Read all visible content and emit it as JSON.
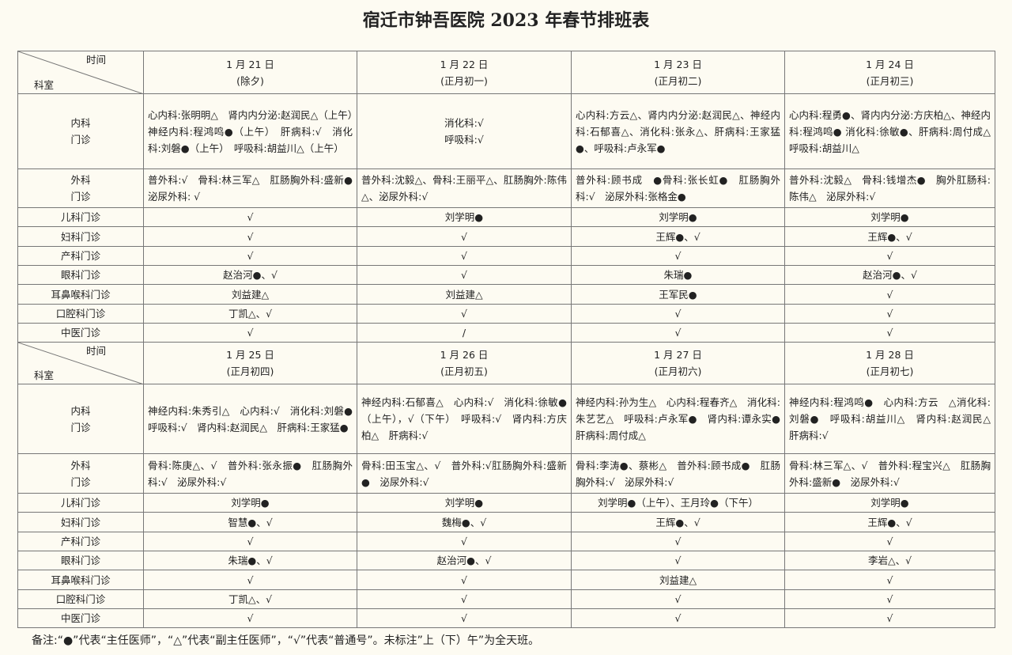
{
  "title": "宿迁市钟吾医院 2023 年春节排班表",
  "blocks": [
    {
      "header": {
        "time": "时间",
        "dept": "科室",
        "days": [
          {
            "date": "1 月 21 日",
            "note": "(除夕)"
          },
          {
            "date": "1 月 22 日",
            "note": "(正月初一)"
          },
          {
            "date": "1 月 23 日",
            "note": "(正月初二)"
          },
          {
            "date": "1 月 24 日",
            "note": "(正月初三)"
          }
        ]
      },
      "rows": [
        {
          "dept": [
            "内科",
            "门诊"
          ],
          "cells": [
            [
              "心内科:张明明△　肾内内分泌:赵润民△（上午）　神经内科:程鸿鸣●（上午）　肝病科:√　消化科:刘磐●（上午）　呼吸科:胡益川△（上午）"
            ],
            [
              "消化科:√",
              "呼吸科:√"
            ],
            [
              "心内科:方云△、肾内内分泌:赵润民△、神经内科:石郁喜△、消化科:张永△、肝病科:王家猛●、呼吸科:卢永军●"
            ],
            [
              "心内科:程勇●、肾内内分泌:方庆柏△、神经内科:程鸿鸣● 消化科:徐敏●、肝病科:周付成△ 呼吸科:胡益川△"
            ]
          ]
        },
        {
          "dept": [
            "外科",
            "门诊"
          ],
          "cells": [
            [
              "普外科:√　骨科:林三军△　肛肠胸外科:盛新●　泌尿外科: √"
            ],
            [
              "普外科:沈毅△、骨科:王丽平△、肛肠胸外:陈伟△、泌尿外科:√"
            ],
            [
              "普外科:顾书成　●骨科:张长虹●　肛肠胸外科:√　泌尿外科:张格金●"
            ],
            [
              "普外科:沈毅△　骨科:钱增杰●　胸外肛肠科:陈伟△　泌尿外科:√"
            ]
          ]
        },
        {
          "dept": [
            "儿科门诊"
          ],
          "cells": [
            [
              "√"
            ],
            [
              "刘学明●"
            ],
            [
              "刘学明●"
            ],
            [
              "刘学明●"
            ]
          ]
        },
        {
          "dept": [
            "妇科门诊"
          ],
          "cells": [
            [
              "√"
            ],
            [
              "√"
            ],
            [
              "王辉●、√"
            ],
            [
              "王辉●、√"
            ]
          ]
        },
        {
          "dept": [
            "产科门诊"
          ],
          "cells": [
            [
              "√"
            ],
            [
              "√"
            ],
            [
              "√"
            ],
            [
              "√"
            ]
          ]
        },
        {
          "dept": [
            "眼科门诊"
          ],
          "cells": [
            [
              "赵治河●、√"
            ],
            [
              "√"
            ],
            [
              "朱瑞●"
            ],
            [
              "赵治河●、√"
            ]
          ]
        },
        {
          "dept": [
            "耳鼻喉科门诊"
          ],
          "cells": [
            [
              "刘益建△"
            ],
            [
              "刘益建△"
            ],
            [
              "王军民●"
            ],
            [
              "√"
            ]
          ]
        },
        {
          "dept": [
            "口腔科门诊"
          ],
          "cells": [
            [
              "丁凯△、√"
            ],
            [
              "√"
            ],
            [
              "√"
            ],
            [
              "√"
            ]
          ]
        },
        {
          "dept": [
            "中医门诊"
          ],
          "cells": [
            [
              "√"
            ],
            [
              "/"
            ],
            [
              "√"
            ],
            [
              "√"
            ]
          ]
        }
      ]
    },
    {
      "header": {
        "time": "时间",
        "dept": "科室",
        "days": [
          {
            "date": "1 月 25 日",
            "note": "(正月初四)"
          },
          {
            "date": "1 月 26 日",
            "note": "(正月初五)"
          },
          {
            "date": "1 月 27 日",
            "note": "(正月初六)"
          },
          {
            "date": "1 月 28 日",
            "note": "(正月初七)"
          }
        ]
      },
      "rows": [
        {
          "dept": [
            "内科",
            "门诊"
          ],
          "cells": [
            [
              "神经内科:朱秀引△　心内科:√　消化科:刘磐●　呼吸科:√　肾内科:赵润民△　肝病科:王家猛●"
            ],
            [
              "神经内科:石郁喜△　心内科:√　消化科:徐敏●（上午），√（下午）　呼吸科:√　肾内科:方庆柏△　肝病科:√"
            ],
            [
              "神经内科:孙为生△　心内科:程春齐△　消化科:朱艺艺△　呼吸科:卢永军●　肾内科:谭永实●　肝病科:周付成△"
            ],
            [
              "神经内科:程鸿鸣●　心内科:方云　△消化科:刘磐●　呼吸科:胡益川△　肾内科:赵润民△　肝病科:√"
            ]
          ]
        },
        {
          "dept": [
            "外科",
            "门诊"
          ],
          "cells": [
            [
              "骨科:陈庚△、√　普外科:张永振●　肛肠胸外科:√　泌尿外科:√"
            ],
            [
              "骨科:田玉宝△、√　普外科:√肛肠胸外科:盛新●　泌尿外科:√"
            ],
            [
              "骨科:李涛●、蔡彬△　普外科:顾书成●　肛肠胸外科:√　泌尿外科:√"
            ],
            [
              "骨科:林三军△、√　普外科:程宝兴△　肛肠胸外科:盛新●　泌尿外科:√"
            ]
          ]
        },
        {
          "dept": [
            "儿科门诊"
          ],
          "cells": [
            [
              "刘学明●"
            ],
            [
              "刘学明●"
            ],
            [
              "刘学明●（上午）、王月玲●（下午）"
            ],
            [
              "刘学明●"
            ]
          ]
        },
        {
          "dept": [
            "妇科门诊"
          ],
          "cells": [
            [
              "智慧●、√"
            ],
            [
              "魏梅●、√"
            ],
            [
              "王辉●、√"
            ],
            [
              "王辉●、√"
            ]
          ]
        },
        {
          "dept": [
            "产科门诊"
          ],
          "cells": [
            [
              "√"
            ],
            [
              "√"
            ],
            [
              "√"
            ],
            [
              "√"
            ]
          ]
        },
        {
          "dept": [
            "眼科门诊"
          ],
          "cells": [
            [
              "朱瑞●、√"
            ],
            [
              "赵治河●、√"
            ],
            [
              "√"
            ],
            [
              "李岩△、√"
            ]
          ]
        },
        {
          "dept": [
            "耳鼻喉科门诊"
          ],
          "cells": [
            [
              "√"
            ],
            [
              "√"
            ],
            [
              "刘益建△"
            ],
            [
              "√"
            ]
          ]
        },
        {
          "dept": [
            "口腔科门诊"
          ],
          "cells": [
            [
              "丁凯△、√"
            ],
            [
              "√"
            ],
            [
              "√"
            ],
            [
              "√"
            ]
          ]
        },
        {
          "dept": [
            "中医门诊"
          ],
          "cells": [
            [
              "√"
            ],
            [
              "√"
            ],
            [
              "√"
            ],
            [
              "√"
            ]
          ]
        }
      ]
    }
  ],
  "note": "备注:“●”代表“主任医师”，“△”代表“副主任医师”，“√”代表“普通号”。未标注”上（下）午”为全天班。"
}
